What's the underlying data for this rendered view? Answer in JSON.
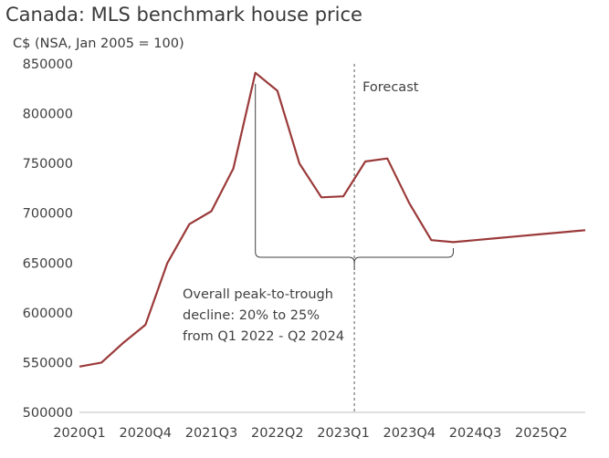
{
  "chart_data": {
    "type": "line",
    "title": "Canada: MLS benchmark house price",
    "subtitle": "C$ (NSA, Jan 2005 = 100)",
    "xlabel": "",
    "ylabel": "",
    "ylim": [
      500000,
      850000
    ],
    "yticks": [
      500000,
      550000,
      600000,
      650000,
      700000,
      750000,
      800000,
      850000
    ],
    "ytick_labels": [
      "500000",
      "550000",
      "600000",
      "650000",
      "700000",
      "750000",
      "800000",
      "850000"
    ],
    "xtick_labels": [
      "2020Q1",
      "2020Q4",
      "2021Q3",
      "2022Q2",
      "2023Q1",
      "2023Q4",
      "2024Q3",
      "2025Q2"
    ],
    "categories": [
      "2020Q1",
      "2020Q2",
      "2020Q3",
      "2020Q4",
      "2021Q1",
      "2021Q2",
      "2021Q3",
      "2021Q4",
      "2022Q1",
      "2022Q2",
      "2022Q3",
      "2022Q4",
      "2023Q1",
      "2023Q2",
      "2023Q3",
      "2023Q4",
      "2024Q1",
      "2024Q2",
      "2024Q3",
      "2024Q4",
      "2025Q1",
      "2025Q2",
      "2025Q3",
      "2025Q4"
    ],
    "series": [
      {
        "values": [
          546000,
          550000,
          570000,
          588000,
          650000,
          689000,
          702000,
          745000,
          841000,
          823000,
          750000,
          716000,
          717000,
          752000,
          755000,
          710000,
          673000,
          671000,
          673000,
          675000,
          677000,
          679000,
          681000,
          683000
        ]
      }
    ],
    "forecast_label": "Forecast",
    "forecast_start_category": "2023Q2",
    "annotation": {
      "lines": [
        "Overall peak-to-trough",
        "decline: 20% to 25%",
        "from Q1 2022 - Q2 2024"
      ]
    },
    "grid": false,
    "line_color": "#9b3a3a",
    "axis_color": "#bfbfbf",
    "text_color": "#404040"
  }
}
